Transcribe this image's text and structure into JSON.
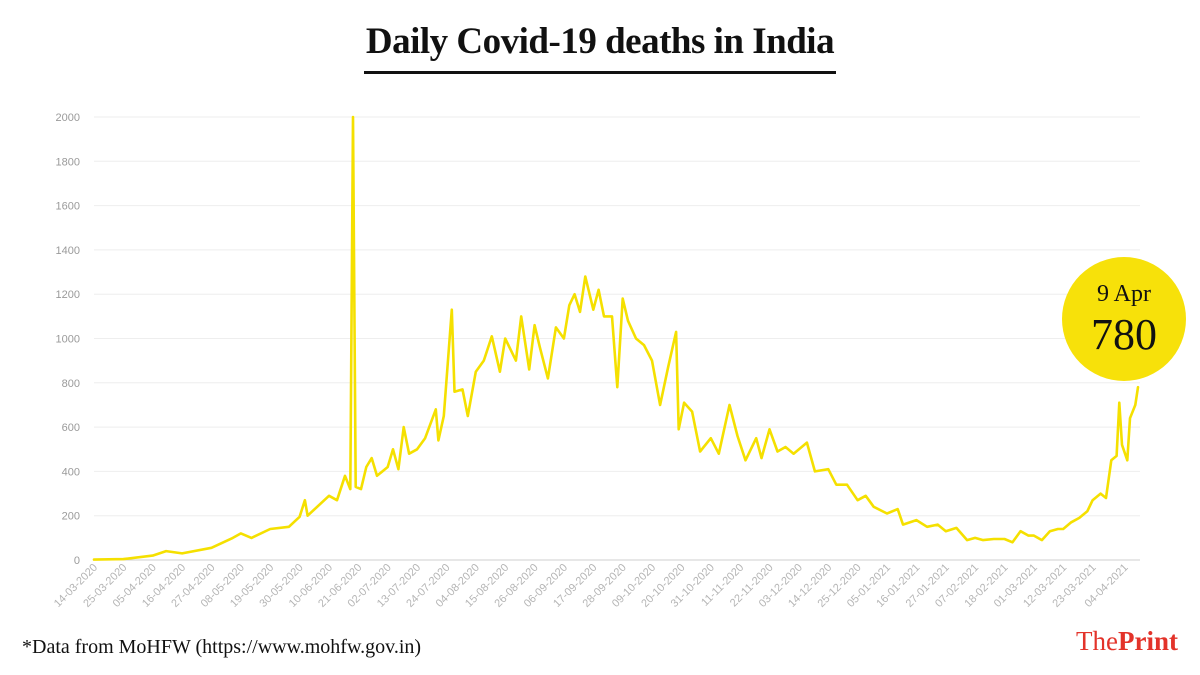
{
  "title": "Daily Covid-19 deaths in India",
  "source_note": "*Data from MoHFW (https://www.mohfw.gov.in)",
  "brand": {
    "part1": "The",
    "part2": "Print"
  },
  "callout": {
    "date": "9 Apr",
    "value": "780"
  },
  "colors": {
    "line": "#f5e000",
    "callout": "#f7e10a",
    "brand": "#e3332a",
    "grid": "#eeeeee",
    "axis_text": "#9a9a9a"
  },
  "chart_data": {
    "type": "line",
    "title": "Daily Covid-19 deaths in India",
    "xlabel": "",
    "ylabel": "",
    "ylim": [
      0,
      2000
    ],
    "yticks": [
      0,
      200,
      400,
      600,
      800,
      1000,
      1200,
      1400,
      1600,
      1800,
      2000
    ],
    "grid": true,
    "x_tick_labels": [
      "14-03-2020",
      "25-03-2020",
      "05-04-2020",
      "16-04-2020",
      "27-04-2020",
      "08-05-2020",
      "19-05-2020",
      "30-05-2020",
      "10-06-2020",
      "21-06-2020",
      "02-07-2020",
      "13-07-2020",
      "24-07-2020",
      "04-08-2020",
      "15-08-2020",
      "26-08-2020",
      "06-09-2020",
      "17-09-2020",
      "28-09-2020",
      "09-10-2020",
      "20-10-2020",
      "31-10-2020",
      "11-11-2020",
      "22-11-2020",
      "03-12-2020",
      "14-12-2020",
      "25-12-2020",
      "05-01-2021",
      "16-01-2021",
      "27-01-2021",
      "07-02-2021",
      "18-02-2021",
      "01-03-2021",
      "12-03-2021",
      "23-03-2021",
      "04-04-2021"
    ],
    "series": [
      {
        "x_start": "14-03-2020",
        "x_end": "09-04-2021",
        "points": [
          [
            "14-03-2020",
            2
          ],
          [
            "25-03-2020",
            4
          ],
          [
            "05-04-2020",
            20
          ],
          [
            "10-04-2020",
            40
          ],
          [
            "16-04-2020",
            30
          ],
          [
            "27-04-2020",
            55
          ],
          [
            "05-05-2020",
            100
          ],
          [
            "08-05-2020",
            120
          ],
          [
            "12-05-2020",
            100
          ],
          [
            "19-05-2020",
            140
          ],
          [
            "26-05-2020",
            150
          ],
          [
            "30-05-2020",
            195
          ],
          [
            "01-06-2020",
            270
          ],
          [
            "02-06-2020",
            200
          ],
          [
            "10-06-2020",
            290
          ],
          [
            "13-06-2020",
            270
          ],
          [
            "16-06-2020",
            380
          ],
          [
            "18-06-2020",
            320
          ],
          [
            "19-06-2020",
            2000
          ],
          [
            "20-06-2020",
            330
          ],
          [
            "22-06-2020",
            320
          ],
          [
            "24-06-2020",
            420
          ],
          [
            "26-06-2020",
            460
          ],
          [
            "28-06-2020",
            380
          ],
          [
            "02-07-2020",
            420
          ],
          [
            "04-07-2020",
            500
          ],
          [
            "06-07-2020",
            410
          ],
          [
            "08-07-2020",
            600
          ],
          [
            "10-07-2020",
            480
          ],
          [
            "13-07-2020",
            500
          ],
          [
            "16-07-2020",
            550
          ],
          [
            "20-07-2020",
            680
          ],
          [
            "21-07-2020",
            540
          ],
          [
            "23-07-2020",
            650
          ],
          [
            "26-07-2020",
            1130
          ],
          [
            "27-07-2020",
            760
          ],
          [
            "30-07-2020",
            770
          ],
          [
            "01-08-2020",
            650
          ],
          [
            "04-08-2020",
            850
          ],
          [
            "07-08-2020",
            900
          ],
          [
            "10-08-2020",
            1010
          ],
          [
            "13-08-2020",
            850
          ],
          [
            "15-08-2020",
            1000
          ],
          [
            "19-08-2020",
            900
          ],
          [
            "21-08-2020",
            1100
          ],
          [
            "24-08-2020",
            860
          ],
          [
            "26-08-2020",
            1060
          ],
          [
            "28-08-2020",
            960
          ],
          [
            "31-08-2020",
            820
          ],
          [
            "03-09-2020",
            1050
          ],
          [
            "06-09-2020",
            1000
          ],
          [
            "08-09-2020",
            1150
          ],
          [
            "10-09-2020",
            1200
          ],
          [
            "12-09-2020",
            1120
          ],
          [
            "14-09-2020",
            1280
          ],
          [
            "17-09-2020",
            1130
          ],
          [
            "19-09-2020",
            1220
          ],
          [
            "21-09-2020",
            1100
          ],
          [
            "24-09-2020",
            1100
          ],
          [
            "26-09-2020",
            780
          ],
          [
            "28-09-2020",
            1180
          ],
          [
            "30-09-2020",
            1080
          ],
          [
            "03-10-2020",
            1000
          ],
          [
            "06-10-2020",
            970
          ],
          [
            "09-10-2020",
            900
          ],
          [
            "12-10-2020",
            700
          ],
          [
            "15-10-2020",
            870
          ],
          [
            "18-10-2020",
            1030
          ],
          [
            "19-10-2020",
            590
          ],
          [
            "21-10-2020",
            710
          ],
          [
            "24-10-2020",
            670
          ],
          [
            "27-10-2020",
            490
          ],
          [
            "31-10-2020",
            550
          ],
          [
            "03-11-2020",
            480
          ],
          [
            "07-11-2020",
            700
          ],
          [
            "10-11-2020",
            560
          ],
          [
            "13-11-2020",
            450
          ],
          [
            "17-11-2020",
            550
          ],
          [
            "19-11-2020",
            460
          ],
          [
            "22-11-2020",
            590
          ],
          [
            "25-11-2020",
            490
          ],
          [
            "28-11-2020",
            510
          ],
          [
            "01-12-2020",
            480
          ],
          [
            "06-12-2020",
            530
          ],
          [
            "09-12-2020",
            400
          ],
          [
            "14-12-2020",
            410
          ],
          [
            "17-12-2020",
            340
          ],
          [
            "21-12-2020",
            340
          ],
          [
            "25-12-2020",
            270
          ],
          [
            "28-12-2020",
            290
          ],
          [
            "31-12-2020",
            240
          ],
          [
            "05-01-2021",
            210
          ],
          [
            "09-01-2021",
            230
          ],
          [
            "11-01-2021",
            160
          ],
          [
            "16-01-2021",
            180
          ],
          [
            "20-01-2021",
            150
          ],
          [
            "24-01-2021",
            160
          ],
          [
            "27-01-2021",
            130
          ],
          [
            "31-01-2021",
            145
          ],
          [
            "04-02-2021",
            90
          ],
          [
            "07-02-2021",
            100
          ],
          [
            "10-02-2021",
            90
          ],
          [
            "14-02-2021",
            95
          ],
          [
            "18-02-2021",
            95
          ],
          [
            "21-02-2021",
            80
          ],
          [
            "24-02-2021",
            130
          ],
          [
            "27-02-2021",
            110
          ],
          [
            "01-03-2021",
            110
          ],
          [
            "04-03-2021",
            90
          ],
          [
            "07-03-2021",
            130
          ],
          [
            "10-03-2021",
            140
          ],
          [
            "12-03-2021",
            140
          ],
          [
            "15-03-2021",
            170
          ],
          [
            "18-03-2021",
            190
          ],
          [
            "21-03-2021",
            220
          ],
          [
            "23-03-2021",
            270
          ],
          [
            "26-03-2021",
            300
          ],
          [
            "28-03-2021",
            280
          ],
          [
            "30-03-2021",
            450
          ],
          [
            "01-04-2021",
            470
          ],
          [
            "02-04-2021",
            710
          ],
          [
            "03-04-2021",
            520
          ],
          [
            "05-04-2021",
            450
          ],
          [
            "06-04-2021",
            640
          ],
          [
            "08-04-2021",
            700
          ],
          [
            "09-04-2021",
            780
          ]
        ]
      }
    ]
  }
}
